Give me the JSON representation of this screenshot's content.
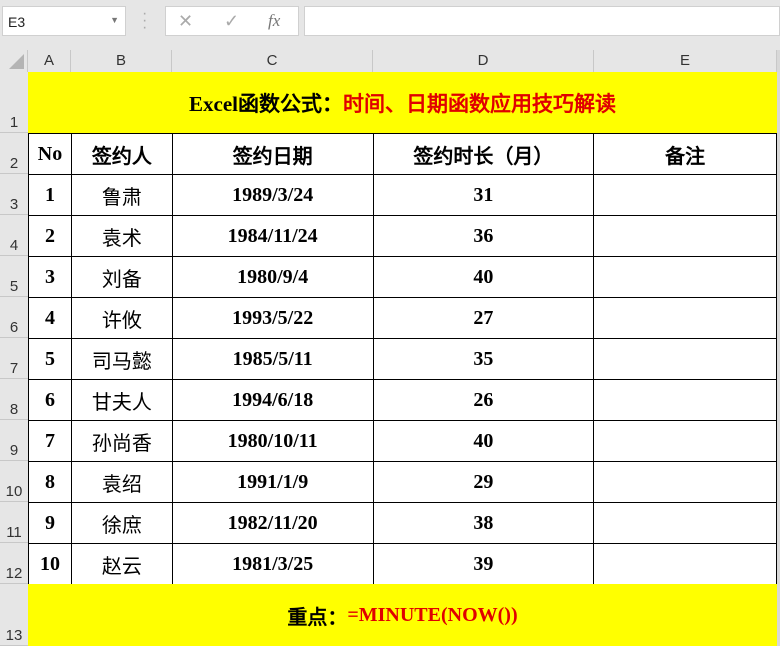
{
  "name_box": "E3",
  "formula_bar": {
    "cancel_icon": "✕",
    "enter_icon": "✓",
    "function_icon": "fx",
    "value": ""
  },
  "columns": [
    "A",
    "B",
    "C",
    "D",
    "E"
  ],
  "rows": [
    "1",
    "2",
    "3",
    "4",
    "5",
    "6",
    "7",
    "8",
    "9",
    "10",
    "11",
    "12",
    "13"
  ],
  "title": {
    "black": "Excel函数公式：",
    "red": "时间、日期函数应用技巧解读"
  },
  "headers": [
    "No",
    "签约人",
    "签约日期",
    "签约时长（月）",
    "备注"
  ],
  "data": [
    [
      "1",
      "鲁肃",
      "1989/3/24",
      "31",
      ""
    ],
    [
      "2",
      "袁术",
      "1984/11/24",
      "36",
      ""
    ],
    [
      "3",
      "刘备",
      "1980/9/4",
      "40",
      ""
    ],
    [
      "4",
      "许攸",
      "1993/5/22",
      "27",
      ""
    ],
    [
      "5",
      "司马懿",
      "1985/5/11",
      "35",
      ""
    ],
    [
      "6",
      "甘夫人",
      "1994/6/18",
      "26",
      ""
    ],
    [
      "7",
      "孙尚香",
      "1980/10/11",
      "40",
      ""
    ],
    [
      "8",
      "袁绍",
      "1991/1/9",
      "29",
      ""
    ],
    [
      "9",
      "徐庶",
      "1982/11/20",
      "38",
      ""
    ],
    [
      "10",
      "赵云",
      "1981/3/25",
      "39",
      ""
    ]
  ],
  "footer": {
    "black": "重点：",
    "red": "=MINUTE(NOW())"
  },
  "colors": {
    "highlight": "#ffff00",
    "accent": "#e00000"
  }
}
